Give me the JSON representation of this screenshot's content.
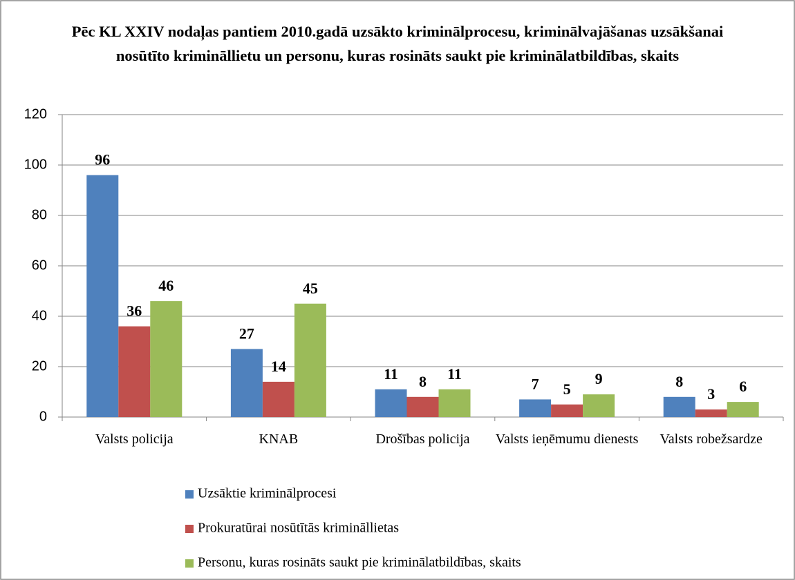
{
  "chart_data": {
    "type": "bar",
    "title": "Pēc KL XXIV nodaļas pantiem 2010.gadā uzsākto kriminālprocesu, kriminālvajāšanas uzsākšanai nosūtīto krimināllietu un personu, kuras rosināts saukt pie kriminālatbildības, skaits",
    "categories": [
      "Valsts policija",
      "KNAB",
      "Drošības policija",
      "Valsts ieņēmumu dienests",
      "Valsts robežsardze"
    ],
    "series": [
      {
        "name": "Uzsāktie kriminālprocesi",
        "color": "#4f81bd",
        "values": [
          96,
          27,
          11,
          7,
          8
        ]
      },
      {
        "name": "Prokuratūrai nosūtītās krimināllietas",
        "color": "#c0504d",
        "values": [
          36,
          14,
          8,
          5,
          3
        ]
      },
      {
        "name": "Personu, kuras rosināts saukt pie kriminālatbildības, skaits",
        "color": "#9bbb59",
        "values": [
          46,
          45,
          11,
          9,
          6
        ]
      }
    ],
    "ylim": [
      0,
      120
    ],
    "yticks": [
      0,
      20,
      40,
      60,
      80,
      100,
      120
    ],
    "grid": true,
    "legend": "bottom"
  }
}
